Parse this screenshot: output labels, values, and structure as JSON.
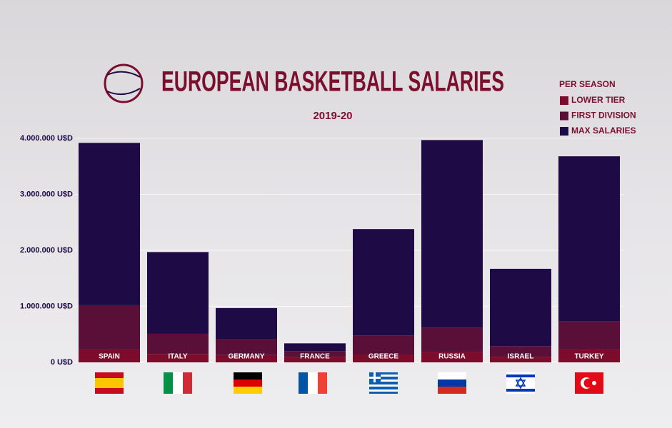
{
  "chart_data": {
    "type": "stacked_bar",
    "title": "EUROPEAN BASKETBALL SALARIES",
    "subtitle": "2019-20",
    "legend_title": "PER SEASON",
    "legend_position": "top-right",
    "categories": [
      "SPAIN",
      "ITALY",
      "GERMANY",
      "FRANCE",
      "GREECE",
      "RUSSIA",
      "ISRAEL",
      "TURKEY"
    ],
    "series": [
      {
        "name": "LOWER TIER",
        "color": "#7d0c2c",
        "values": [
          230000,
          150000,
          130000,
          100000,
          140000,
          190000,
          100000,
          230000
        ]
      },
      {
        "name": "FIRST DIVISION",
        "color": "#5a0f38",
        "values": [
          790000,
          360000,
          290000,
          100000,
          340000,
          430000,
          190000,
          500000
        ]
      },
      {
        "name": "MAX SALARIES",
        "color": "#1e0a45",
        "values": [
          2900000,
          1460000,
          550000,
          140000,
          1900000,
          3350000,
          1380000,
          2950000
        ]
      }
    ],
    "ylim": [
      0,
      4000000
    ],
    "yticks": [
      {
        "value": 0,
        "label": "0 U$D"
      },
      {
        "value": 1000000,
        "label": "1.000.000 U$D"
      },
      {
        "value": 2000000,
        "label": "2.000.000 U$D"
      },
      {
        "value": 3000000,
        "label": "3.000.000 U$D"
      },
      {
        "value": 4000000,
        "label": "4.000.000 U$D"
      }
    ],
    "grid": true
  }
}
